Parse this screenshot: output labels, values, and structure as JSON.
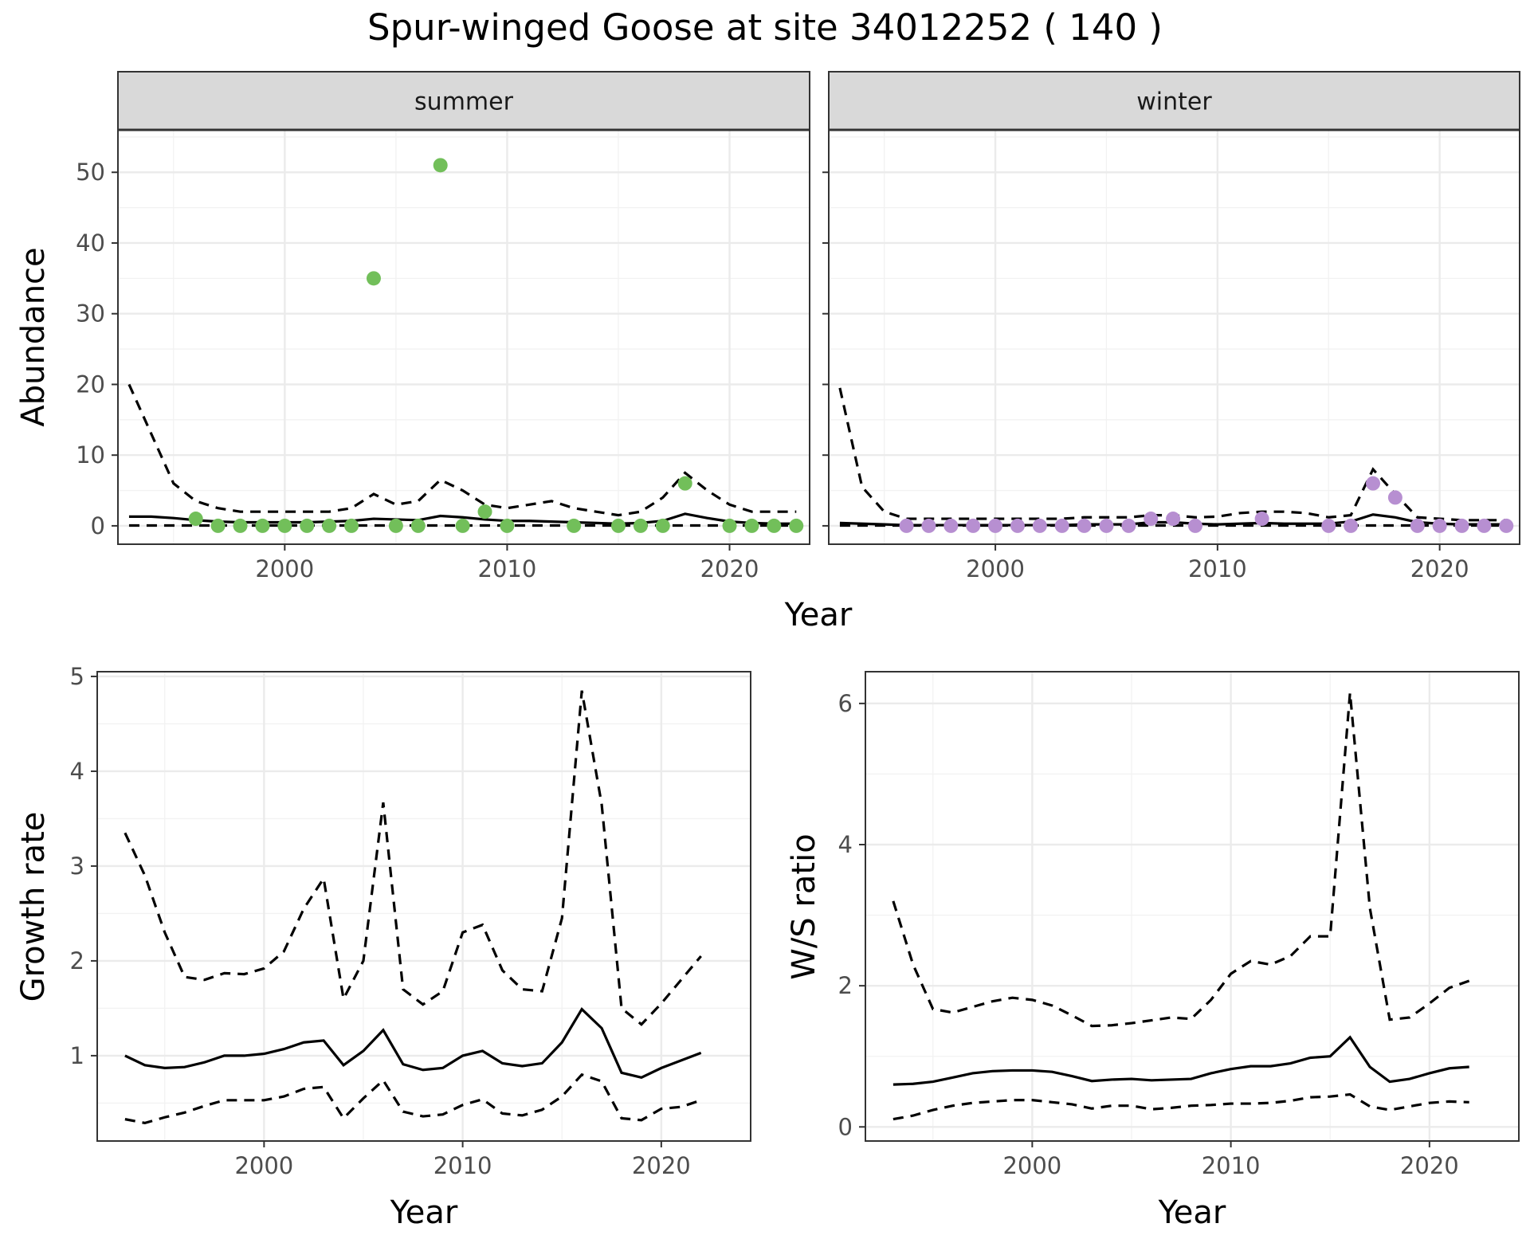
{
  "title": "Spur-winged Goose at site 34012252 ( 140 )",
  "colors": {
    "summer_points": "#72bf5a",
    "winter_points": "#b78fd1",
    "strip_fill": "#d9d9d9"
  },
  "chart_data": [
    {
      "id": "abundance-summer",
      "type": "line",
      "facet": "summer",
      "xlabel": "Year",
      "ylabel": "Abundance",
      "xlim": [
        1992.5,
        2023.6
      ],
      "ylim": [
        -2.6,
        56
      ],
      "x_ticks": [
        2000,
        2010,
        2020
      ],
      "y_ticks": [
        0,
        10,
        20,
        30,
        40,
        50
      ],
      "grid": true,
      "lines": [
        {
          "style": "solid",
          "x": [
            1993,
            1994,
            1995,
            1996,
            1997,
            1998,
            1999,
            2000,
            2001,
            2002,
            2003,
            2004,
            2005,
            2006,
            2007,
            2008,
            2009,
            2010,
            2011,
            2012,
            2013,
            2014,
            2015,
            2016,
            2017,
            2018,
            2019,
            2020,
            2021,
            2022,
            2023
          ],
          "y": [
            1.3,
            1.3,
            1.1,
            0.8,
            0.6,
            0.5,
            0.5,
            0.5,
            0.5,
            0.6,
            0.7,
            1.0,
            0.9,
            0.8,
            1.4,
            1.2,
            0.9,
            0.7,
            0.7,
            0.6,
            0.5,
            0.4,
            0.3,
            0.4,
            0.7,
            1.7,
            1.1,
            0.6,
            0.4,
            0.3,
            0.3
          ]
        },
        {
          "style": "dashed",
          "x": [
            1993,
            1994,
            1995,
            1996,
            1997,
            1998,
            1999,
            2000,
            2001,
            2002,
            2003,
            2004,
            2005,
            2006,
            2007,
            2008,
            2009,
            2010,
            2011,
            2012,
            2013,
            2014,
            2015,
            2016,
            2017,
            2018,
            2019,
            2020,
            2021,
            2022,
            2023
          ],
          "y": [
            20,
            13,
            6,
            3.5,
            2.5,
            2,
            2,
            2,
            2,
            2,
            2.5,
            4.5,
            3,
            3.5,
            6.5,
            5,
            3,
            2.5,
            3,
            3.5,
            2.5,
            2,
            1.5,
            2,
            4,
            7.5,
            5,
            3,
            2,
            2,
            2
          ]
        },
        {
          "style": "dashed",
          "x": [
            1993,
            1994,
            1995,
            1996,
            1997,
            1998,
            1999,
            2000,
            2001,
            2002,
            2003,
            2004,
            2005,
            2006,
            2007,
            2008,
            2009,
            2010,
            2011,
            2012,
            2013,
            2014,
            2015,
            2016,
            2017,
            2018,
            2019,
            2020,
            2021,
            2022,
            2023
          ],
          "y": [
            0.05,
            0.05,
            0.05,
            0.05,
            0.05,
            0.05,
            0.05,
            0.05,
            0.05,
            0.05,
            0.05,
            0.05,
            0.05,
            0.05,
            0.05,
            0.05,
            0.05,
            0.05,
            0.05,
            0.05,
            0.05,
            0.05,
            0.05,
            0.05,
            0.05,
            0.05,
            0.05,
            0.05,
            0.05,
            0.05,
            0.05
          ]
        }
      ],
      "points": {
        "x": [
          1996,
          1997,
          1998,
          1999,
          2000,
          2001,
          2002,
          2003,
          2004,
          2005,
          2006,
          2007,
          2008,
          2009,
          2010,
          2013,
          2015,
          2016,
          2017,
          2018,
          2020,
          2021,
          2022,
          2023
        ],
        "y": [
          1,
          0,
          0,
          0,
          0,
          0,
          0,
          0,
          35,
          0,
          0,
          51,
          0,
          2,
          0,
          0,
          0,
          0,
          0,
          6,
          0,
          0,
          0,
          0
        ]
      }
    },
    {
      "id": "abundance-winter",
      "type": "line",
      "facet": "winter",
      "xlabel": "Year",
      "ylabel": "Abundance",
      "xlim": [
        1992.5,
        2023.6
      ],
      "ylim": [
        -2.6,
        56
      ],
      "x_ticks": [
        2000,
        2010,
        2020
      ],
      "y_ticks": [
        0,
        10,
        20,
        30,
        40,
        50
      ],
      "grid": true,
      "lines": [
        {
          "style": "solid",
          "x": [
            1993,
            1994,
            1995,
            1996,
            1997,
            1998,
            1999,
            2000,
            2001,
            2002,
            2003,
            2004,
            2005,
            2006,
            2007,
            2008,
            2009,
            2010,
            2011,
            2012,
            2013,
            2014,
            2015,
            2016,
            2017,
            2018,
            2019,
            2020,
            2021,
            2022,
            2023
          ],
          "y": [
            0.4,
            0.3,
            0.2,
            0.1,
            0.1,
            0.1,
            0.1,
            0.1,
            0.1,
            0.1,
            0.1,
            0.2,
            0.2,
            0.2,
            0.5,
            0.5,
            0.3,
            0.2,
            0.3,
            0.4,
            0.3,
            0.3,
            0.3,
            0.6,
            1.6,
            1.2,
            0.5,
            0.3,
            0.2,
            0.2,
            0.2
          ]
        },
        {
          "style": "dashed",
          "x": [
            1993,
            1994,
            1995,
            1996,
            1997,
            1998,
            1999,
            2000,
            2001,
            2002,
            2003,
            2004,
            2005,
            2006,
            2007,
            2008,
            2009,
            2010,
            2011,
            2012,
            2013,
            2014,
            2015,
            2016,
            2017,
            2018,
            2019,
            2020,
            2021,
            2022,
            2023
          ],
          "y": [
            19.5,
            5.5,
            2,
            1,
            1,
            1,
            1,
            1,
            1,
            1,
            1,
            1.2,
            1.2,
            1.2,
            1.5,
            1.5,
            1.2,
            1.3,
            1.8,
            2,
            2,
            1.8,
            1.2,
            1.5,
            8,
            4.5,
            1.2,
            1,
            0.8,
            0.8,
            0.8
          ]
        },
        {
          "style": "dashed",
          "x": [
            1993,
            1994,
            1995,
            1996,
            1997,
            1998,
            1999,
            2000,
            2001,
            2002,
            2003,
            2004,
            2005,
            2006,
            2007,
            2008,
            2009,
            2010,
            2011,
            2012,
            2013,
            2014,
            2015,
            2016,
            2017,
            2018,
            2019,
            2020,
            2021,
            2022,
            2023
          ],
          "y": [
            0.05,
            0.05,
            0.05,
            0.05,
            0.05,
            0.05,
            0.05,
            0.05,
            0.05,
            0.05,
            0.05,
            0.05,
            0.05,
            0.05,
            0.05,
            0.05,
            0.05,
            0.05,
            0.05,
            0.05,
            0.05,
            0.05,
            0.05,
            0.05,
            0.05,
            0.05,
            0.05,
            0.05,
            0.05,
            0.05,
            0.05
          ]
        }
      ],
      "points": {
        "x": [
          1996,
          1997,
          1998,
          1999,
          2000,
          2001,
          2002,
          2003,
          2004,
          2005,
          2006,
          2007,
          2008,
          2009,
          2012,
          2015,
          2016,
          2017,
          2018,
          2019,
          2020,
          2021,
          2022,
          2023
        ],
        "y": [
          0,
          0,
          0,
          0,
          0,
          0,
          0,
          0,
          0,
          0,
          0,
          1,
          1,
          0,
          1,
          0,
          0,
          6,
          4,
          0,
          0,
          0,
          0,
          0
        ]
      }
    },
    {
      "id": "growth-rate",
      "type": "line",
      "xlabel": "Year",
      "ylabel": "Growth rate",
      "xlim": [
        1991.6,
        2024.5
      ],
      "ylim": [
        0.1,
        5.05
      ],
      "x_ticks": [
        2000,
        2010,
        2020
      ],
      "y_ticks": [
        1,
        2,
        3,
        4,
        5
      ],
      "grid": true,
      "lines": [
        {
          "style": "solid",
          "x": [
            1993,
            1994,
            1995,
            1996,
            1997,
            1998,
            1999,
            2000,
            2001,
            2002,
            2003,
            2004,
            2005,
            2006,
            2007,
            2008,
            2009,
            2010,
            2011,
            2012,
            2013,
            2014,
            2015,
            2016,
            2017,
            2018,
            2019,
            2020,
            2021,
            2022
          ],
          "y": [
            1.0,
            0.9,
            0.87,
            0.88,
            0.93,
            1.0,
            1.0,
            1.02,
            1.07,
            1.14,
            1.16,
            0.9,
            1.05,
            1.27,
            0.91,
            0.85,
            0.87,
            1.0,
            1.05,
            0.92,
            0.89,
            0.92,
            1.14,
            1.49,
            1.29,
            0.82,
            0.77,
            0.87,
            0.95,
            1.03
          ]
        },
        {
          "style": "dashed",
          "x": [
            1993,
            1994,
            1995,
            1996,
            1997,
            1998,
            1999,
            2000,
            2001,
            2002,
            2003,
            2004,
            2005,
            2006,
            2007,
            2008,
            2009,
            2010,
            2011,
            2012,
            2013,
            2014,
            2015,
            2016,
            2017,
            2018,
            2019,
            2020,
            2021,
            2022
          ],
          "y": [
            3.35,
            2.9,
            2.3,
            1.83,
            1.8,
            1.87,
            1.86,
            1.92,
            2.1,
            2.55,
            2.87,
            1.6,
            2.0,
            3.67,
            1.7,
            1.54,
            1.68,
            2.3,
            2.38,
            1.9,
            1.7,
            1.68,
            2.45,
            4.85,
            3.65,
            1.5,
            1.33,
            1.55,
            1.8,
            2.05
          ]
        },
        {
          "style": "dashed",
          "x": [
            1993,
            1994,
            1995,
            1996,
            1997,
            1998,
            1999,
            2000,
            2001,
            2002,
            2003,
            2004,
            2005,
            2006,
            2007,
            2008,
            2009,
            2010,
            2011,
            2012,
            2013,
            2014,
            2015,
            2016,
            2017,
            2018,
            2019,
            2020,
            2021,
            2022
          ],
          "y": [
            0.33,
            0.29,
            0.35,
            0.4,
            0.47,
            0.53,
            0.53,
            0.53,
            0.57,
            0.65,
            0.67,
            0.34,
            0.55,
            0.74,
            0.41,
            0.36,
            0.38,
            0.48,
            0.54,
            0.39,
            0.37,
            0.43,
            0.57,
            0.8,
            0.73,
            0.34,
            0.32,
            0.44,
            0.46,
            0.53
          ]
        }
      ]
    },
    {
      "id": "ws-ratio",
      "type": "line",
      "xlabel": "Year",
      "ylabel": "W/S ratio",
      "xlim": [
        1991.6,
        2024.5
      ],
      "ylim": [
        -0.2,
        6.45
      ],
      "x_ticks": [
        2000,
        2010,
        2020
      ],
      "y_ticks": [
        0,
        2,
        4,
        6
      ],
      "grid": true,
      "lines": [
        {
          "style": "solid",
          "x": [
            1993,
            1994,
            1995,
            1996,
            1997,
            1998,
            1999,
            2000,
            2001,
            2002,
            2003,
            2004,
            2005,
            2006,
            2007,
            2008,
            2009,
            2010,
            2011,
            2012,
            2013,
            2014,
            2015,
            2016,
            2017,
            2018,
            2019,
            2020,
            2021,
            2022
          ],
          "y": [
            0.6,
            0.61,
            0.64,
            0.7,
            0.76,
            0.79,
            0.8,
            0.8,
            0.78,
            0.72,
            0.65,
            0.67,
            0.68,
            0.66,
            0.67,
            0.68,
            0.76,
            0.82,
            0.86,
            0.86,
            0.9,
            0.98,
            1.0,
            1.27,
            0.85,
            0.64,
            0.68,
            0.76,
            0.83,
            0.85
          ]
        },
        {
          "style": "dashed",
          "x": [
            1993,
            1994,
            1995,
            1996,
            1997,
            1998,
            1999,
            2000,
            2001,
            2002,
            2003,
            2004,
            2005,
            2006,
            2007,
            2008,
            2009,
            2010,
            2011,
            2012,
            2013,
            2014,
            2015,
            2016,
            2017,
            2018,
            2019,
            2020,
            2021,
            2022
          ],
          "y": [
            3.2,
            2.3,
            1.67,
            1.62,
            1.7,
            1.78,
            1.83,
            1.8,
            1.72,
            1.58,
            1.43,
            1.44,
            1.47,
            1.51,
            1.55,
            1.53,
            1.8,
            2.17,
            2.35,
            2.3,
            2.42,
            2.7,
            2.7,
            6.15,
            3.1,
            1.52,
            1.55,
            1.75,
            1.97,
            2.07
          ]
        },
        {
          "style": "dashed",
          "x": [
            1993,
            1994,
            1995,
            1996,
            1997,
            1998,
            1999,
            2000,
            2001,
            2002,
            2003,
            2004,
            2005,
            2006,
            2007,
            2008,
            2009,
            2010,
            2011,
            2012,
            2013,
            2014,
            2015,
            2016,
            2017,
            2018,
            2019,
            2020,
            2021,
            2022
          ],
          "y": [
            0.11,
            0.16,
            0.24,
            0.3,
            0.34,
            0.36,
            0.38,
            0.38,
            0.35,
            0.32,
            0.26,
            0.3,
            0.3,
            0.25,
            0.27,
            0.3,
            0.31,
            0.33,
            0.33,
            0.34,
            0.37,
            0.42,
            0.43,
            0.46,
            0.29,
            0.24,
            0.29,
            0.34,
            0.36,
            0.35
          ]
        }
      ]
    }
  ],
  "strips": {
    "summer": "summer",
    "winter": "winter"
  }
}
